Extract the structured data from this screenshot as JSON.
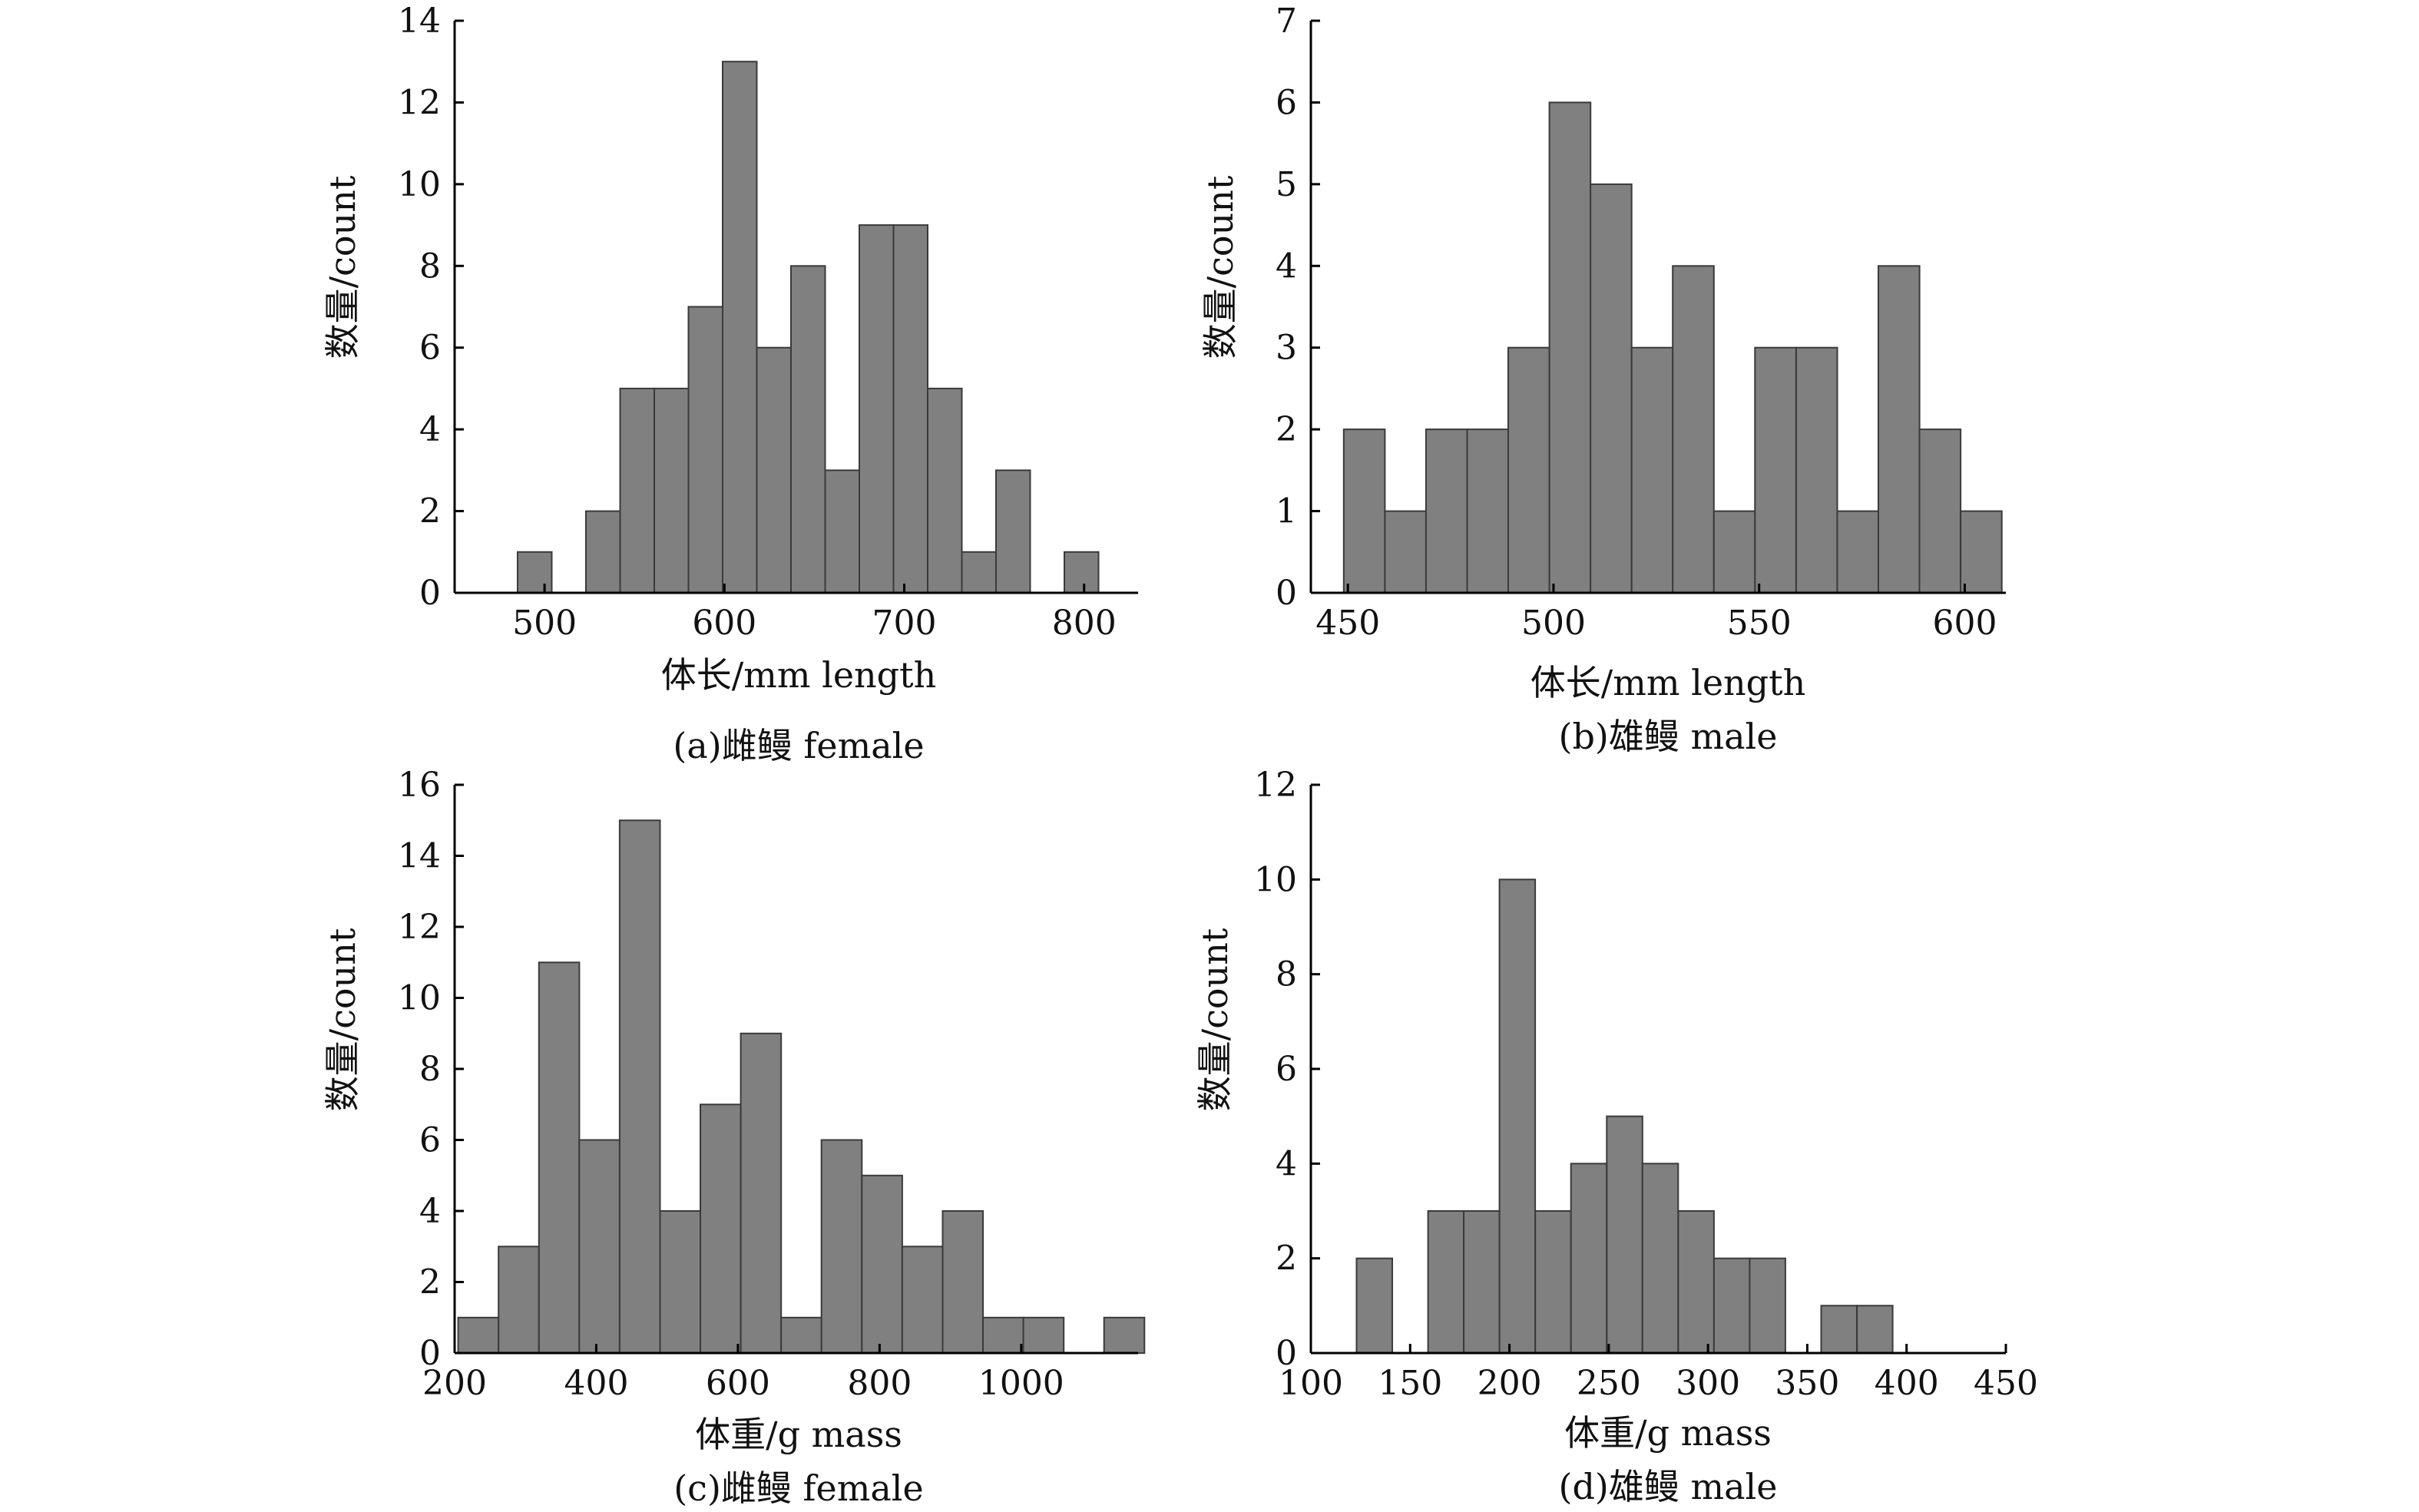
{
  "style": {
    "bar_fill": "#808080",
    "bar_stroke": "#3a3a3a",
    "axis_color": "#000000",
    "background": "#ffffff"
  },
  "chart_data": [
    {
      "id": "a",
      "type": "bar",
      "subtype": "histogram",
      "caption": "(a)雌鳗 female",
      "xlabel": "体长/mm length",
      "ylabel": "数量/count",
      "xlim": [
        450,
        830
      ],
      "ylim": [
        0,
        14
      ],
      "xticks": [
        500,
        600,
        700,
        800
      ],
      "yticks": [
        0,
        2,
        4,
        6,
        8,
        10,
        12,
        14
      ],
      "bin_width": 19,
      "bins": [
        {
          "start": 485,
          "count": 1
        },
        {
          "start": 523,
          "count": 2
        },
        {
          "start": 542,
          "count": 5
        },
        {
          "start": 561,
          "count": 5
        },
        {
          "start": 580,
          "count": 7
        },
        {
          "start": 599,
          "count": 13
        },
        {
          "start": 618,
          "count": 6
        },
        {
          "start": 637,
          "count": 8
        },
        {
          "start": 656,
          "count": 3
        },
        {
          "start": 675,
          "count": 9
        },
        {
          "start": 694,
          "count": 9
        },
        {
          "start": 713,
          "count": 5
        },
        {
          "start": 732,
          "count": 1
        },
        {
          "start": 751,
          "count": 3
        },
        {
          "start": 789,
          "count": 1
        }
      ]
    },
    {
      "id": "b",
      "type": "bar",
      "subtype": "histogram",
      "caption": "(b)雄鳗 male",
      "xlabel": "体长/mm length",
      "ylabel": "数量/count",
      "xlim": [
        441,
        610
      ],
      "ylim": [
        0,
        7
      ],
      "xticks": [
        450,
        500,
        550,
        600
      ],
      "yticks": [
        0,
        1,
        2,
        3,
        4,
        5,
        6,
        7
      ],
      "bin_width": 10,
      "bins": [
        {
          "start": 449,
          "count": 2
        },
        {
          "start": 459,
          "count": 1
        },
        {
          "start": 469,
          "count": 2
        },
        {
          "start": 479,
          "count": 2
        },
        {
          "start": 489,
          "count": 3
        },
        {
          "start": 499,
          "count": 6
        },
        {
          "start": 509,
          "count": 5
        },
        {
          "start": 519,
          "count": 3
        },
        {
          "start": 529,
          "count": 4
        },
        {
          "start": 539,
          "count": 1
        },
        {
          "start": 549,
          "count": 3
        },
        {
          "start": 559,
          "count": 3
        },
        {
          "start": 569,
          "count": 1
        },
        {
          "start": 579,
          "count": 4
        },
        {
          "start": 589,
          "count": 2
        },
        {
          "start": 599,
          "count": 1
        }
      ]
    },
    {
      "id": "c",
      "type": "bar",
      "subtype": "histogram",
      "caption": "(c)雌鳗 female",
      "xlabel": "体重/g mass",
      "ylabel": "数量/count",
      "xlim": [
        200,
        1165
      ],
      "ylim": [
        0,
        16
      ],
      "xticks": [
        200,
        400,
        600,
        800,
        1000
      ],
      "yticks": [
        0,
        2,
        4,
        6,
        8,
        10,
        12,
        14,
        16
      ],
      "bin_width": 57,
      "bins": [
        {
          "start": 205,
          "count": 1
        },
        {
          "start": 262,
          "count": 3
        },
        {
          "start": 319,
          "count": 11
        },
        {
          "start": 376,
          "count": 6
        },
        {
          "start": 433,
          "count": 15
        },
        {
          "start": 490,
          "count": 4
        },
        {
          "start": 547,
          "count": 7
        },
        {
          "start": 604,
          "count": 9
        },
        {
          "start": 661,
          "count": 1
        },
        {
          "start": 718,
          "count": 6
        },
        {
          "start": 775,
          "count": 5
        },
        {
          "start": 832,
          "count": 3
        },
        {
          "start": 889,
          "count": 4
        },
        {
          "start": 946,
          "count": 1
        },
        {
          "start": 1003,
          "count": 1
        },
        {
          "start": 1117,
          "count": 1
        }
      ]
    },
    {
      "id": "d",
      "type": "bar",
      "subtype": "histogram",
      "caption": "(d)雄鳗 male",
      "xlabel": "体重/g mass",
      "ylabel": "数量/count",
      "xlim": [
        100,
        450
      ],
      "ylim": [
        0,
        12
      ],
      "xticks": [
        100,
        150,
        200,
        250,
        300,
        350,
        400,
        450
      ],
      "yticks": [
        0,
        2,
        4,
        6,
        8,
        10,
        12
      ],
      "bin_width": 18,
      "bins": [
        {
          "start": 123,
          "count": 2
        },
        {
          "start": 159,
          "count": 3
        },
        {
          "start": 177,
          "count": 3
        },
        {
          "start": 195,
          "count": 10
        },
        {
          "start": 213,
          "count": 3
        },
        {
          "start": 231,
          "count": 4
        },
        {
          "start": 249,
          "count": 5
        },
        {
          "start": 267,
          "count": 4
        },
        {
          "start": 285,
          "count": 3
        },
        {
          "start": 303,
          "count": 2
        },
        {
          "start": 321,
          "count": 2
        },
        {
          "start": 357,
          "count": 1
        },
        {
          "start": 375,
          "count": 1
        }
      ]
    }
  ]
}
